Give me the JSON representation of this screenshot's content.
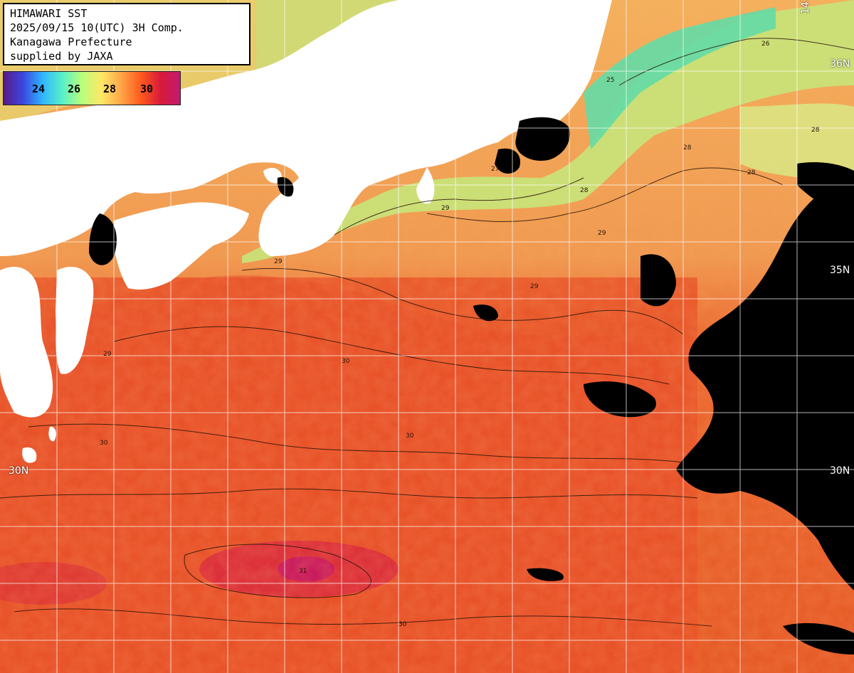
{
  "header": {
    "line1": "HIMAWARI SST",
    "line2": "2025/09/15 10(UTC) 3H Comp.",
    "line3": "Kanagawa Prefecture",
    "line4": "supplied by JAXA"
  },
  "legend": {
    "labels": [
      "24",
      "26",
      "28",
      "30"
    ],
    "colors": [
      "#5a1a86",
      "#3b47e0",
      "#2fb6ff",
      "#58f0c8",
      "#b9ff7a",
      "#ffe766",
      "#ffa548",
      "#ff5a1e",
      "#d81a3a",
      "#c01a72"
    ]
  },
  "grid": {
    "lat_labels_right": [
      "36N",
      "35N",
      "30N"
    ],
    "lat_labels_left": [
      "30N"
    ],
    "lon_label_top": "141"
  },
  "contours": [
    "25",
    "26",
    "27",
    "28",
    "28",
    "28",
    "29",
    "29",
    "29",
    "29",
    "30",
    "30",
    "30",
    "31",
    "30",
    "29",
    "28"
  ],
  "colors": {
    "land": "#ffffff",
    "cloud": "#000000",
    "grid": "#ffffff",
    "warm": "#ea5a22",
    "hot": "#e03a2a",
    "mild": "#f3a256",
    "cool": "#cfe57a",
    "cold": "#6fe0a0"
  }
}
